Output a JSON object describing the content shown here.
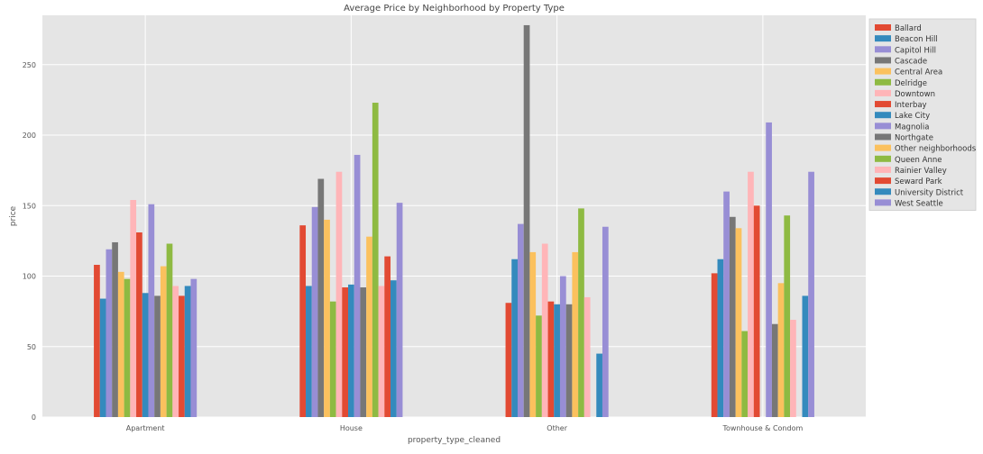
{
  "chart_data": {
    "type": "bar",
    "title": "Average Price by Neighborhood by Property Type",
    "xlabel": "property_type_cleaned",
    "ylabel": "price",
    "categories": [
      "Apartment",
      "House",
      "Other",
      "Townhouse & Condom"
    ],
    "ylim": [
      0,
      285
    ],
    "yticks": [
      0,
      50,
      100,
      150,
      200,
      250
    ],
    "grid": true,
    "legend_position": "outside-top-right",
    "colors": {
      "plot_background": "#e5e5e5",
      "grid": "#ffffff"
    },
    "series": [
      {
        "name": "Ballard",
        "color": "#e24a33",
        "values": [
          108,
          136,
          81,
          102
        ]
      },
      {
        "name": "Beacon Hill",
        "color": "#348abd",
        "values": [
          84,
          93,
          112,
          112
        ]
      },
      {
        "name": "Capitol Hill",
        "color": "#988ed5",
        "values": [
          119,
          149,
          137,
          160
        ]
      },
      {
        "name": "Cascade",
        "color": "#777777",
        "values": [
          124,
          169,
          278,
          142
        ]
      },
      {
        "name": "Central Area",
        "color": "#fbc15e",
        "values": [
          103,
          140,
          117,
          134
        ]
      },
      {
        "name": "Delridge",
        "color": "#8eba42",
        "values": [
          98,
          82,
          72,
          61
        ]
      },
      {
        "name": "Downtown",
        "color": "#ffb5b8",
        "values": [
          154,
          174,
          123,
          174
        ]
      },
      {
        "name": "Interbay",
        "color": "#e24a33",
        "values": [
          131,
          92,
          82,
          150
        ]
      },
      {
        "name": "Lake City",
        "color": "#348abd",
        "values": [
          88,
          94,
          80,
          null
        ]
      },
      {
        "name": "Magnolia",
        "color": "#988ed5",
        "values": [
          151,
          186,
          100,
          209
        ]
      },
      {
        "name": "Northgate",
        "color": "#777777",
        "values": [
          86,
          92,
          80,
          66
        ]
      },
      {
        "name": "Other neighborhoods",
        "color": "#fbc15e",
        "values": [
          107,
          128,
          117,
          95
        ]
      },
      {
        "name": "Queen Anne",
        "color": "#8eba42",
        "values": [
          123,
          223,
          148,
          143
        ]
      },
      {
        "name": "Rainier Valley",
        "color": "#ffb5b8",
        "values": [
          93,
          93,
          85,
          69
        ]
      },
      {
        "name": "Seward Park",
        "color": "#e24a33",
        "values": [
          86,
          114,
          null,
          null
        ]
      },
      {
        "name": "University District",
        "color": "#348abd",
        "values": [
          93,
          97,
          45,
          86
        ]
      },
      {
        "name": "West Seattle",
        "color": "#988ed5",
        "values": [
          98,
          152,
          135,
          174
        ]
      }
    ]
  }
}
